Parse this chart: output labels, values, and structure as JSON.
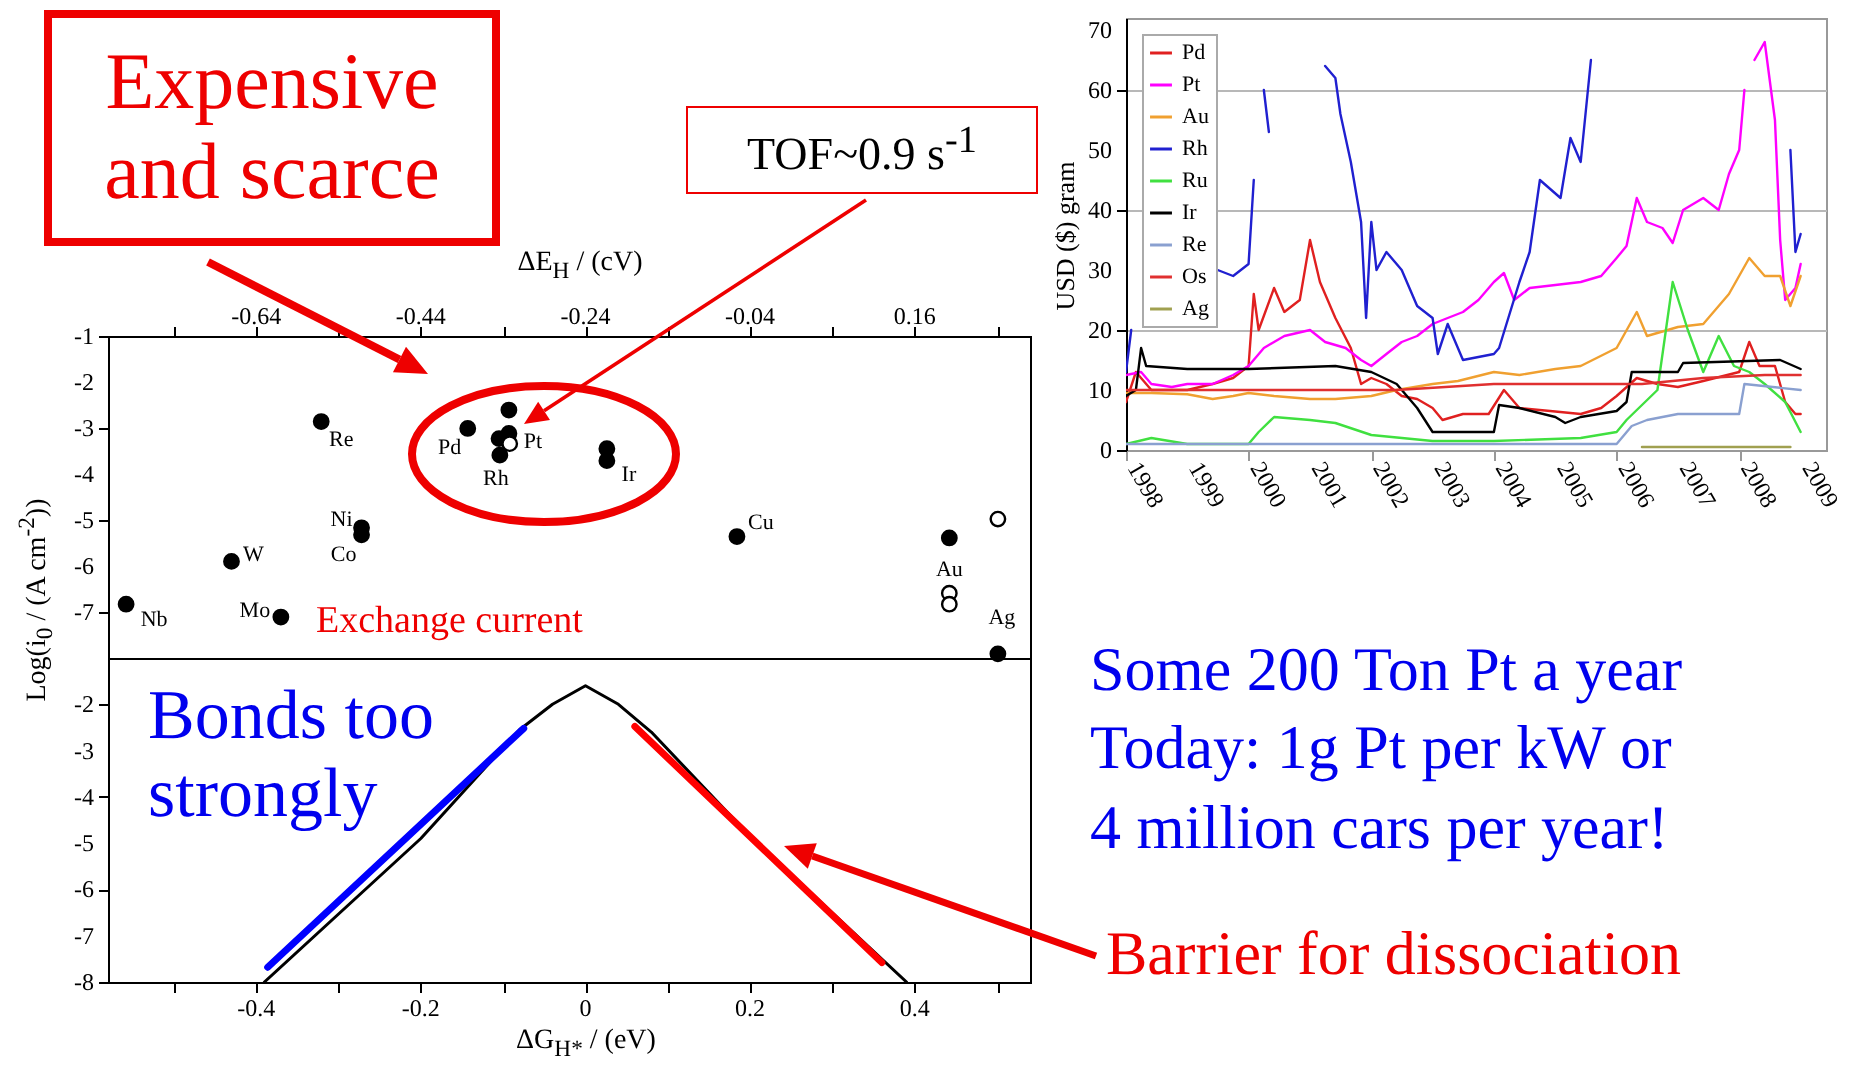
{
  "chart_data": [
    {
      "type": "scatter",
      "xlabel": "ΔE$_{H}$ / (cV)",
      "ylabel": "Log(i$_{0}$ / (A cm$^{-2}$))",
      "xlim": [
        -0.82,
        0.3
      ],
      "xticks": [
        {
          "value": -0.74,
          "label": null
        },
        -0.64,
        {
          "value": -0.54,
          "label": null
        },
        -0.44,
        {
          "value": -0.34,
          "label": null
        },
        -0.24,
        {
          "value": -0.14,
          "label": null
        },
        -0.04,
        {
          "value": 0.06,
          "label": null
        },
        0.16,
        {
          "value": 0.26,
          "label": null
        }
      ],
      "ylim": [
        -8,
        -1
      ],
      "yticks": [
        -1,
        -2,
        -3,
        -4,
        -5,
        -6,
        -7
      ],
      "marker": "circle",
      "series": [
        {
          "color": "#000000",
          "x": [
            -0.798,
            -0.67,
            -0.61,
            -0.561,
            -0.512,
            -0.512,
            -0.383,
            -0.333,
            -0.333,
            -0.345,
            -0.344,
            -0.214,
            -0.214,
            -0.056,
            0.202,
            0.261
          ],
          "values": [
            -6.83,
            -5.9,
            -7.11,
            -2.86,
            -5.17,
            -5.32,
            -3.01,
            -2.61,
            -3.12,
            -3.23,
            -3.59,
            -3.45,
            -3.71,
            -5.36,
            -5.39,
            -7.91
          ]
        },
        {
          "color": "#ffffff",
          "x": [
            -0.332,
            0.202,
            0.202,
            0.261
          ],
          "values": [
            -3.34,
            -6.59,
            -6.83,
            -4.98
          ]
        }
      ],
      "annotations": [
        "Expensive and scarce",
        "TOF~0.9 s$^{-1}$",
        "Exchange current",
        {
          "text": "Nb",
          "x": -0.798,
          "y": -6.83
        },
        {
          "text": "W",
          "x": -0.67,
          "y": -5.9
        },
        {
          "text": "Mo",
          "x": -0.61,
          "y": -7.11
        },
        {
          "text": "Re",
          "x": -0.561,
          "y": -2.86
        },
        {
          "text": "Ni",
          "x": -0.512,
          "y": -5.17
        },
        {
          "text": "Co",
          "x": -0.512,
          "y": -5.32
        },
        {
          "text": "Pd",
          "x": -0.383,
          "y": -3.01
        },
        {
          "text": "Pt",
          "x": -0.333,
          "y": -3.12
        },
        {
          "text": "Rh",
          "x": -0.344,
          "y": -3.59
        },
        {
          "text": "Ir",
          "x": -0.214,
          "y": -3.71
        },
        {
          "text": "Cu",
          "x": -0.056,
          "y": -5.36
        },
        {
          "text": "Au",
          "x": 0.202,
          "y": -5.39
        },
        {
          "text": "Ag",
          "x": 0.261,
          "y": -7.91
        }
      ]
    },
    {
      "type": "line",
      "xlabel": "ΔG$_{H*}$ / (eV)",
      "xlim": [
        -0.58,
        0.54
      ],
      "xticks": [
        {
          "value": -0.5,
          "label": null
        },
        -0.4,
        {
          "value": -0.3,
          "label": null
        },
        -0.2,
        {
          "value": -0.1,
          "label": null
        },
        0,
        {
          "value": 0.1,
          "label": null
        },
        0.2,
        {
          "value": 0.3,
          "label": null
        },
        0.4,
        {
          "value": 0.5,
          "label": null
        }
      ],
      "ylim": [
        -8,
        -1
      ],
      "yticks": [
        -2,
        -3,
        -4,
        -5,
        -6,
        -7,
        -8
      ],
      "series": [
        {
          "color": "#000000",
          "x": [
            -0.39,
            -0.2,
            -0.08,
            -0.04,
            0,
            0.04,
            0.08,
            0.2,
            0.39
          ],
          "values": [
            -8,
            -4.9,
            -2.55,
            -2.0,
            -1.6,
            -2.0,
            -2.6,
            -4.85,
            -8
          ]
        },
        {
          "color": "#0000ff",
          "x": [
            -0.386,
            -0.075
          ],
          "values": [
            -7.68,
            -2.52
          ]
        },
        {
          "color": "#ff0000",
          "x": [
            0.06,
            0.36
          ],
          "values": [
            -2.48,
            -7.58
          ]
        }
      ],
      "annotations": [
        "Bonds too strongly",
        "Barrier for dissociation"
      ]
    },
    {
      "type": "line",
      "ylabel": "USD ($) gram",
      "xlim": [
        "1998-01",
        "2009-06"
      ],
      "xticks": [
        "1998",
        "1999",
        "2000",
        "2001",
        "2002",
        "2003",
        "2004",
        "2005",
        "2006",
        "2007",
        "2008",
        "2009"
      ],
      "ylim": [
        0,
        72
      ],
      "yticks": [
        0,
        10,
        20,
        30,
        40,
        50,
        60,
        70
      ],
      "grid": "y",
      "legend": "top left",
      "series": [
        {
          "name": "Pd",
          "color": "#e02020",
          "x": [
            "1998-01",
            "1998-03",
            "1998-06",
            "1998-10",
            "1999-01",
            "1999-06",
            "1999-10",
            "2000-01",
            "2000-02",
            "2000-03",
            "2000-06",
            "2000-08",
            "2000-11",
            "2001-01",
            "2001-03",
            "2001-06",
            "2001-09",
            "2001-11",
            "2002-01",
            "2002-04",
            "2002-07",
            "2002-10",
            "2003-01",
            "2003-03",
            "2003-07",
            "2003-12",
            "2004-03",
            "2004-06",
            "2004-12",
            "2005-06",
            "2005-10",
            "2006-01",
            "2006-05",
            "2006-09",
            "2007-01",
            "2007-06",
            "2008-01",
            "2008-03",
            "2008-05",
            "2008-08",
            "2008-10",
            "2008-12",
            "2009-01"
          ],
          "values": [
            8,
            13,
            10,
            10,
            10,
            11,
            12,
            14,
            26,
            20,
            27,
            23,
            25,
            35,
            28,
            22,
            17,
            11,
            12,
            11,
            9,
            8.5,
            7,
            5,
            6,
            6,
            10,
            7,
            6.5,
            6,
            7,
            9,
            12,
            11,
            10.5,
            11.5,
            13,
            18,
            14,
            14,
            8,
            6,
            6
          ]
        },
        {
          "name": "Pt",
          "color": "#ff00ff",
          "x": [
            "1998-01",
            "1998-04",
            "1998-06",
            "1998-10",
            "1999-01",
            "1999-06",
            "1999-10",
            "2000-01",
            "2000-04",
            "2000-08",
            "2001-01",
            "2001-04",
            "2001-08",
            "2001-11",
            "2002-01",
            "2002-04",
            "2002-07",
            "2002-10",
            "2003-01",
            "2003-04",
            "2003-07",
            "2003-10",
            "2004-01",
            "2004-03",
            "2004-05",
            "2004-08",
            "2005-01",
            "2005-06",
            "2005-10",
            "2006-01",
            "2006-03",
            "2006-05",
            "2006-07",
            "2006-10",
            "2006-12",
            "2007-02",
            "2007-06",
            "2007-09",
            "2007-11",
            "2008-01",
            "2008-02",
            "2008-03",
            "2008-04",
            "2008-06",
            "2008-08",
            "2008-09",
            "2008-10",
            "2008-12",
            "2009-01"
          ],
          "values": [
            12.5,
            13,
            11,
            10.5,
            11,
            11,
            12.5,
            14,
            17,
            19,
            20,
            18,
            17,
            15,
            14,
            16,
            18,
            19,
            21,
            22,
            23,
            25,
            28,
            29.5,
            25,
            27,
            27.5,
            28,
            29,
            32,
            34,
            42,
            38,
            37,
            34.5,
            40,
            42,
            40,
            46,
            50,
            60,
            null,
            65,
            68,
            55,
            35,
            25,
            27,
            31
          ]
        },
        {
          "name": "Au",
          "color": "#f0a030",
          "x": [
            "1998-01",
            "1998-06",
            "1999-01",
            "1999-06",
            "1999-10",
            "2000-01",
            "2000-06",
            "2001-01",
            "2001-06",
            "2002-01",
            "2002-06",
            "2003-01",
            "2003-06",
            "2004-01",
            "2004-06",
            "2005-01",
            "2005-06",
            "2006-01",
            "2006-05",
            "2006-07",
            "2007-01",
            "2007-06",
            "2007-11",
            "2008-03",
            "2008-06",
            "2008-09",
            "2008-11",
            "2009-01"
          ],
          "values": [
            9.5,
            9.5,
            9.3,
            8.5,
            9,
            9.5,
            9,
            8.5,
            8.5,
            9,
            10,
            11,
            11.5,
            13,
            12.5,
            13.5,
            14,
            17,
            23,
            19,
            20.5,
            21,
            26,
            32,
            29,
            29,
            24,
            29
          ]
        },
        {
          "name": "Rh",
          "color": "#2020d0",
          "x": [
            "1998-01",
            "1998-02",
            "1998-03",
            "1999-07",
            "1999-10",
            "2000-01",
            "2000-02",
            "2000-03",
            "2000-04",
            "2000-05",
            "2000-07",
            "2000-09",
            "2000-10",
            "2000-11",
            "2001-01",
            "2001-02",
            "2001-03",
            "2001-04",
            "2001-06",
            "2001-07",
            "2001-09",
            "2001-11",
            "2001-12",
            "2002-01",
            "2002-02",
            "2002-04",
            "2002-07",
            "2002-10",
            "2003-01",
            "2003-02",
            "2003-04",
            "2003-07",
            "2004-01",
            "2004-02",
            "2004-06",
            "2004-08",
            "2004-10",
            "2005-02",
            "2005-04",
            "2005-06",
            "2005-08",
            "2005-10",
            "2008-09",
            "2008-10",
            "2008-11",
            "2008-12",
            "2009-01"
          ],
          "values": [
            13,
            20,
            null,
            30,
            29,
            31,
            45,
            null,
            60,
            53,
            null,
            null,
            null,
            null,
            null,
            null,
            null,
            64,
            62,
            56,
            48,
            38,
            22,
            38,
            30,
            33,
            30,
            24,
            22,
            16,
            21,
            15,
            16,
            17,
            28,
            33,
            45,
            42,
            52,
            48,
            65,
            null,
            null,
            null,
            50,
            33,
            36
          ]
        },
        {
          "name": "Ru",
          "color": "#40e040",
          "x": [
            "1998-01",
            "1998-06",
            "1999-01",
            "2000-01",
            "2000-03",
            "2000-06",
            "2001-01",
            "2001-06",
            "2002-01",
            "2003-01",
            "2004-01",
            "2005-06",
            "2006-01",
            "2006-03",
            "2006-09",
            "2006-12",
            "2007-03",
            "2007-06",
            "2007-09",
            "2007-12",
            "2008-03",
            "2008-06",
            "2008-10",
            "2009-01"
          ],
          "values": [
            1,
            2,
            1,
            1,
            3,
            5.5,
            5,
            4.5,
            2.5,
            1.5,
            1.5,
            2,
            3,
            5,
            10,
            28,
            20,
            13,
            19,
            14,
            13,
            11,
            8,
            3
          ]
        },
        {
          "name": "Ir",
          "color": "#000000",
          "x": [
            "1998-01",
            "1998-03",
            "1998-04",
            "1998-05",
            "1999-01",
            "2000-01",
            "2001-06",
            "2002-01",
            "2002-06",
            "2002-10",
            "2003-01",
            "2004-01",
            "2004-02",
            "2004-06",
            "2005-01",
            "2005-03",
            "2005-06",
            "2006-01",
            "2006-03",
            "2006-04",
            "2007-01",
            "2007-02",
            "2008-09",
            "2009-01"
          ],
          "values": [
            9,
            10,
            17,
            14,
            13.5,
            13.5,
            14,
            13,
            11,
            7,
            3,
            3,
            7.5,
            7,
            5.5,
            4.5,
            5.5,
            6.5,
            8,
            13,
            13,
            14.5,
            15,
            13.5
          ]
        },
        {
          "name": "Re",
          "color": "#8aa0d0",
          "x": [
            "1998-01",
            "2006-01",
            "2006-04",
            "2006-07",
            "2007-01",
            "2007-06",
            "2008-01",
            "2008-02",
            "2009-01"
          ],
          "values": [
            1,
            1,
            4,
            5,
            6,
            6,
            6,
            11,
            10
          ]
        },
        {
          "name": "Os",
          "color": "#e03030",
          "x": [
            "1998-01",
            "2002-06",
            "2004-01",
            "2006-06",
            "2007-06",
            "2008-06",
            "2009-01"
          ],
          "values": [
            10,
            10,
            11,
            11,
            12,
            12.5,
            12.5
          ]
        },
        {
          "name": "Ag",
          "color": "#a0a050",
          "x": [
            "2006-06",
            "2008-11"
          ],
          "values": [
            0.5,
            0.5
          ]
        }
      ],
      "annotations": [
        "Some 200 Ton Pt a year",
        "Today: 1g Pt per kW or",
        "4 million cars per year!"
      ]
    }
  ]
}
